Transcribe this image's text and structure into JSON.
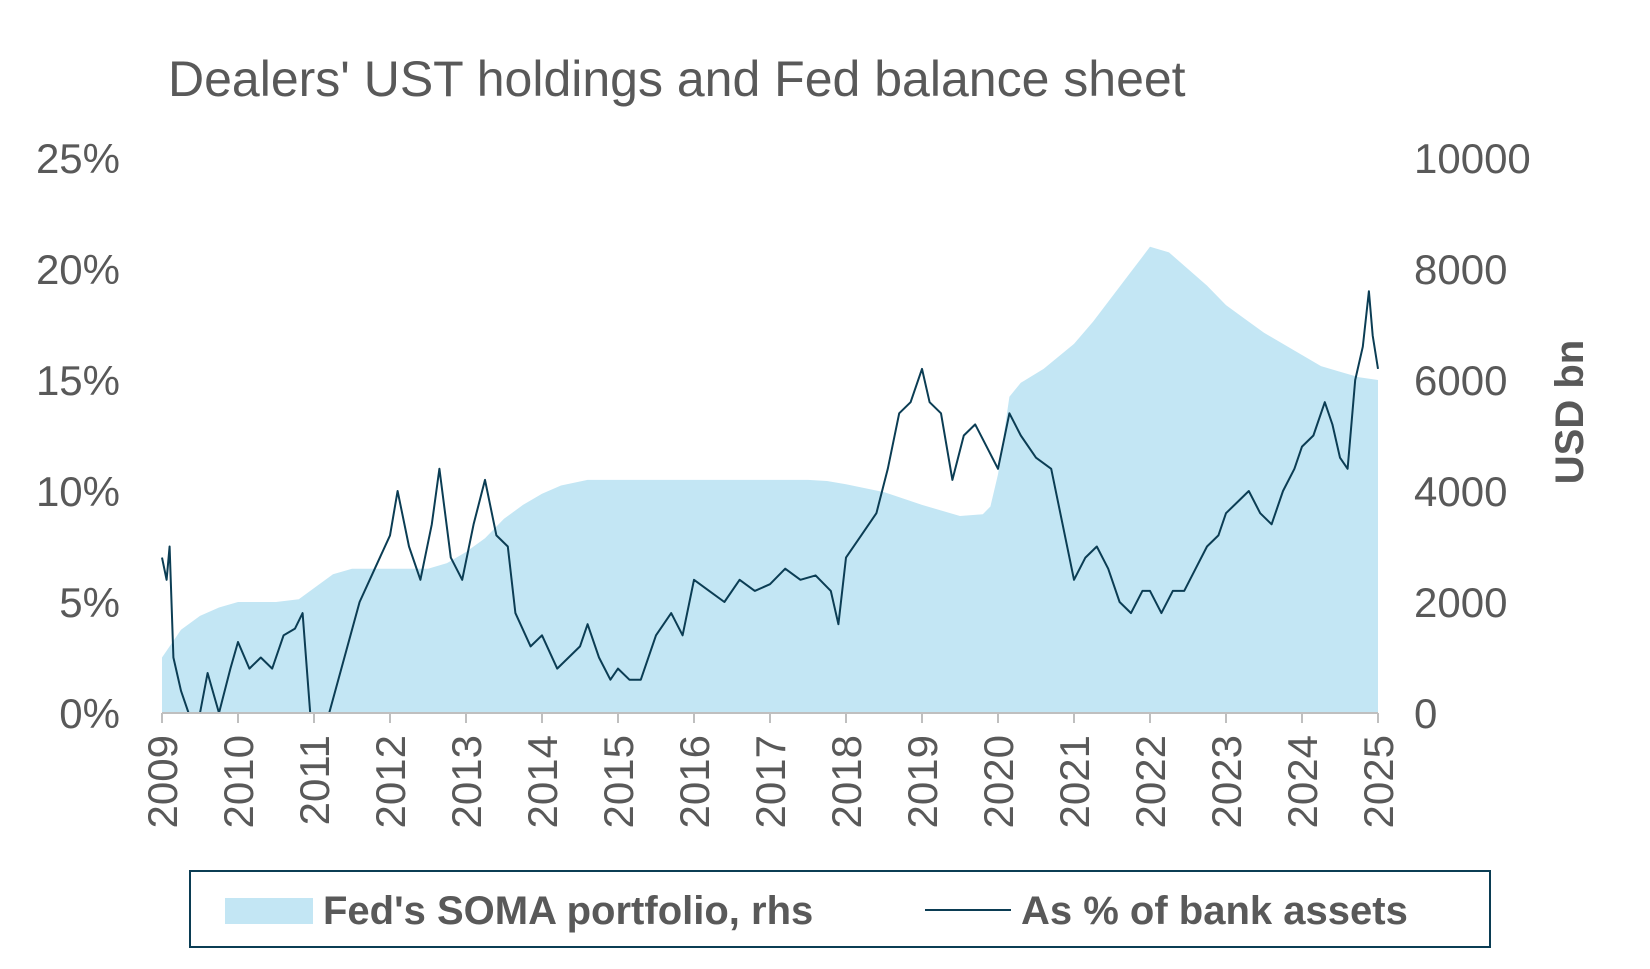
{
  "colors": {
    "area": "#c3e6f4",
    "line": "#0b3d54",
    "text": "#595959",
    "legend_border": "#0b3d54",
    "axis": "#bfbfbf"
  },
  "chart_data": {
    "type": "area+line",
    "title": "Dealers' UST holdings and Fed balance sheet",
    "xlabel": "",
    "x_ticks": [
      "2009",
      "2010",
      "2011",
      "2012",
      "2013",
      "2014",
      "2015",
      "2016",
      "2017",
      "2018",
      "2019",
      "2020",
      "2021",
      "2022",
      "2023",
      "2024",
      "2025"
    ],
    "xlim": [
      2009,
      2025
    ],
    "y_left": {
      "ticks": [
        "0%",
        "5%",
        "10%",
        "15%",
        "20%",
        "25%"
      ],
      "lim": [
        0,
        25
      ],
      "label": ""
    },
    "y_right": {
      "ticks": [
        "0",
        "2000",
        "4000",
        "6000",
        "8000",
        "10000"
      ],
      "lim": [
        0,
        10000
      ],
      "label": "USD bn"
    },
    "grid": false,
    "legend_position": "bottom",
    "series": [
      {
        "name": "Fed's SOMA portfolio, rhs",
        "kind": "area",
        "axis": "right",
        "points": [
          [
            2009.0,
            1000
          ],
          [
            2009.25,
            1500
          ],
          [
            2009.5,
            1750
          ],
          [
            2009.75,
            1900
          ],
          [
            2010.0,
            2000
          ],
          [
            2010.5,
            2000
          ],
          [
            2010.8,
            2050
          ],
          [
            2011.0,
            2250
          ],
          [
            2011.25,
            2500
          ],
          [
            2011.5,
            2600
          ],
          [
            2012.0,
            2600
          ],
          [
            2012.5,
            2600
          ],
          [
            2012.75,
            2700
          ],
          [
            2013.0,
            2900
          ],
          [
            2013.25,
            3150
          ],
          [
            2013.5,
            3500
          ],
          [
            2013.75,
            3750
          ],
          [
            2014.0,
            3950
          ],
          [
            2014.25,
            4100
          ],
          [
            2014.6,
            4200
          ],
          [
            2015.0,
            4200
          ],
          [
            2016.0,
            4200
          ],
          [
            2017.0,
            4200
          ],
          [
            2017.5,
            4200
          ],
          [
            2017.75,
            4180
          ],
          [
            2018.0,
            4120
          ],
          [
            2018.5,
            3980
          ],
          [
            2019.0,
            3750
          ],
          [
            2019.5,
            3550
          ],
          [
            2019.8,
            3580
          ],
          [
            2019.9,
            3720
          ],
          [
            2020.0,
            4300
          ],
          [
            2020.15,
            5700
          ],
          [
            2020.3,
            5950
          ],
          [
            2020.6,
            6200
          ],
          [
            2021.0,
            6650
          ],
          [
            2021.25,
            7050
          ],
          [
            2021.5,
            7500
          ],
          [
            2021.75,
            7950
          ],
          [
            2022.0,
            8400
          ],
          [
            2022.25,
            8300
          ],
          [
            2022.5,
            8000
          ],
          [
            2022.75,
            7700
          ],
          [
            2023.0,
            7350
          ],
          [
            2023.25,
            7100
          ],
          [
            2023.5,
            6850
          ],
          [
            2023.75,
            6650
          ],
          [
            2024.0,
            6450
          ],
          [
            2024.25,
            6250
          ],
          [
            2024.5,
            6150
          ],
          [
            2024.75,
            6050
          ],
          [
            2025.0,
            6000
          ]
        ]
      },
      {
        "name": "As % of bank assets",
        "kind": "line",
        "axis": "left",
        "points": [
          [
            2009.0,
            7.0
          ],
          [
            2009.06,
            6.0
          ],
          [
            2009.1,
            7.5
          ],
          [
            2009.15,
            2.5
          ],
          [
            2009.25,
            1.0
          ],
          [
            2009.35,
            0.0
          ],
          [
            2009.5,
            0.0
          ],
          [
            2009.6,
            1.8
          ],
          [
            2009.75,
            0.0
          ],
          [
            2009.9,
            2.0
          ],
          [
            2010.0,
            3.2
          ],
          [
            2010.15,
            2.0
          ],
          [
            2010.3,
            2.5
          ],
          [
            2010.45,
            2.0
          ],
          [
            2010.6,
            3.5
          ],
          [
            2010.75,
            3.8
          ],
          [
            2010.85,
            4.5
          ],
          [
            2010.95,
            0.0
          ],
          [
            2011.2,
            0.0
          ],
          [
            2011.4,
            2.5
          ],
          [
            2011.6,
            5.0
          ],
          [
            2011.8,
            6.5
          ],
          [
            2012.0,
            8.0
          ],
          [
            2012.1,
            10.0
          ],
          [
            2012.25,
            7.5
          ],
          [
            2012.4,
            6.0
          ],
          [
            2012.55,
            8.5
          ],
          [
            2012.65,
            11.0
          ],
          [
            2012.8,
            7.0
          ],
          [
            2012.95,
            6.0
          ],
          [
            2013.1,
            8.5
          ],
          [
            2013.25,
            10.5
          ],
          [
            2013.4,
            8.0
          ],
          [
            2013.55,
            7.5
          ],
          [
            2013.65,
            4.5
          ],
          [
            2013.85,
            3.0
          ],
          [
            2014.0,
            3.5
          ],
          [
            2014.2,
            2.0
          ],
          [
            2014.35,
            2.5
          ],
          [
            2014.5,
            3.0
          ],
          [
            2014.6,
            4.0
          ],
          [
            2014.75,
            2.5
          ],
          [
            2014.9,
            1.5
          ],
          [
            2015.0,
            2.0
          ],
          [
            2015.15,
            1.5
          ],
          [
            2015.3,
            1.5
          ],
          [
            2015.5,
            3.5
          ],
          [
            2015.7,
            4.5
          ],
          [
            2015.85,
            3.5
          ],
          [
            2016.0,
            6.0
          ],
          [
            2016.2,
            5.5
          ],
          [
            2016.4,
            5.0
          ],
          [
            2016.6,
            6.0
          ],
          [
            2016.8,
            5.5
          ],
          [
            2017.0,
            5.8
          ],
          [
            2017.2,
            6.5
          ],
          [
            2017.4,
            6.0
          ],
          [
            2017.6,
            6.2
          ],
          [
            2017.8,
            5.5
          ],
          [
            2017.9,
            4.0
          ],
          [
            2018.0,
            7.0
          ],
          [
            2018.2,
            8.0
          ],
          [
            2018.4,
            9.0
          ],
          [
            2018.55,
            11.0
          ],
          [
            2018.7,
            13.5
          ],
          [
            2018.85,
            14.0
          ],
          [
            2019.0,
            15.5
          ],
          [
            2019.1,
            14.0
          ],
          [
            2019.25,
            13.5
          ],
          [
            2019.4,
            10.5
          ],
          [
            2019.55,
            12.5
          ],
          [
            2019.7,
            13.0
          ],
          [
            2019.85,
            12.0
          ],
          [
            2020.0,
            11.0
          ],
          [
            2020.15,
            13.5
          ],
          [
            2020.3,
            12.5
          ],
          [
            2020.5,
            11.5
          ],
          [
            2020.7,
            11.0
          ],
          [
            2020.85,
            8.5
          ],
          [
            2021.0,
            6.0
          ],
          [
            2021.15,
            7.0
          ],
          [
            2021.3,
            7.5
          ],
          [
            2021.45,
            6.5
          ],
          [
            2021.6,
            5.0
          ],
          [
            2021.75,
            4.5
          ],
          [
            2021.9,
            5.5
          ],
          [
            2022.0,
            5.5
          ],
          [
            2022.15,
            4.5
          ],
          [
            2022.3,
            5.5
          ],
          [
            2022.45,
            5.5
          ],
          [
            2022.6,
            6.5
          ],
          [
            2022.75,
            7.5
          ],
          [
            2022.9,
            8.0
          ],
          [
            2023.0,
            9.0
          ],
          [
            2023.15,
            9.5
          ],
          [
            2023.3,
            10.0
          ],
          [
            2023.45,
            9.0
          ],
          [
            2023.6,
            8.5
          ],
          [
            2023.75,
            10.0
          ],
          [
            2023.9,
            11.0
          ],
          [
            2024.0,
            12.0
          ],
          [
            2024.15,
            12.5
          ],
          [
            2024.3,
            14.0
          ],
          [
            2024.4,
            13.0
          ],
          [
            2024.5,
            11.5
          ],
          [
            2024.6,
            11.0
          ],
          [
            2024.7,
            15.0
          ],
          [
            2024.8,
            16.5
          ],
          [
            2024.88,
            19.0
          ],
          [
            2024.93,
            17.0
          ],
          [
            2025.0,
            15.5
          ]
        ]
      }
    ]
  }
}
